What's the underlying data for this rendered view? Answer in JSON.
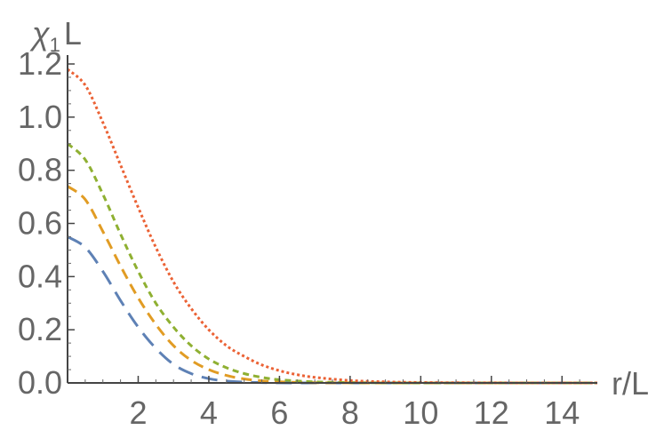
{
  "chart_data": {
    "type": "line",
    "title": "",
    "ylabel": {
      "main": "χ",
      "sub": "1",
      "tail": "L"
    },
    "xlabel": "r/L",
    "xlim": [
      0,
      15
    ],
    "ylim": [
      0,
      1.2
    ],
    "grid": false,
    "x_ticks": [
      2,
      4,
      6,
      8,
      10,
      12,
      14
    ],
    "x_tick_labels": [
      "2",
      "4",
      "6",
      "8",
      "10",
      "12",
      "14"
    ],
    "y_ticks": [
      0.0,
      0.2,
      0.4,
      0.6,
      0.8,
      1.0,
      1.2
    ],
    "y_tick_labels": [
      "0.0",
      "0.2",
      "0.4",
      "0.6",
      "0.8",
      "1.0",
      "1.2"
    ],
    "series": [
      {
        "color": "#5e81b5",
        "dash": "long-dash",
        "x": [
          0,
          0.5,
          1,
          1.5,
          2,
          2.5,
          3,
          3.5,
          4,
          4.5,
          5,
          6,
          8,
          10,
          15
        ],
        "y": [
          0.55,
          0.51,
          0.42,
          0.31,
          0.21,
          0.13,
          0.07,
          0.035,
          0.016,
          0.007,
          0.003,
          0.0005,
          0,
          0,
          0
        ]
      },
      {
        "color": "#e19c24",
        "dash": "medium-dash",
        "x": [
          0,
          0.5,
          1,
          1.5,
          2,
          2.5,
          3,
          3.5,
          4,
          4.5,
          5,
          5.5,
          6,
          7,
          8,
          10,
          15
        ],
        "y": [
          0.74,
          0.69,
          0.57,
          0.44,
          0.32,
          0.22,
          0.14,
          0.085,
          0.05,
          0.028,
          0.015,
          0.008,
          0.004,
          0.001,
          0.0003,
          0,
          0
        ]
      },
      {
        "color": "#8fb032",
        "dash": "short-dash",
        "x": [
          0,
          0.5,
          1,
          1.5,
          2,
          2.5,
          3,
          3.5,
          4,
          4.5,
          5,
          5.5,
          6,
          7,
          8,
          10,
          15
        ],
        "y": [
          0.9,
          0.84,
          0.71,
          0.56,
          0.42,
          0.3,
          0.21,
          0.14,
          0.09,
          0.057,
          0.035,
          0.021,
          0.012,
          0.004,
          0.0012,
          0.0001,
          0
        ]
      },
      {
        "color": "#eb6235",
        "dash": "dotted",
        "x": [
          0,
          0.5,
          1,
          1.5,
          2,
          2.5,
          3,
          3.5,
          4,
          4.5,
          5,
          5.5,
          6,
          6.5,
          7,
          8,
          9,
          10,
          12,
          15
        ],
        "y": [
          1.18,
          1.12,
          0.98,
          0.82,
          0.66,
          0.51,
          0.38,
          0.28,
          0.2,
          0.14,
          0.1,
          0.068,
          0.046,
          0.031,
          0.021,
          0.009,
          0.004,
          0.0016,
          0.0003,
          0
        ]
      }
    ]
  }
}
